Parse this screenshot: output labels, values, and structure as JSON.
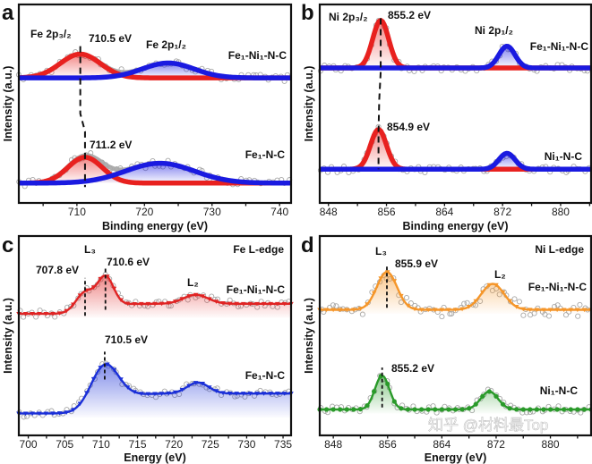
{
  "watermark": "知乎 @材料最Top",
  "chart_data": [
    {
      "panel": "a",
      "type": "line",
      "xlabel": "Binding energy (eV)",
      "ylabel": "Intensity (a.u.)",
      "xlim": [
        701.4,
        741.7
      ],
      "ylim": [
        0,
        1
      ],
      "xticks": [
        710,
        720,
        730,
        740
      ],
      "annotations": [
        "Fe 2p₃/₂",
        "710.5 eV",
        "Fe 2p₁/₂",
        "Fe₁-Ni₁-N-C",
        "711.2 eV",
        "Fe₁-N-C"
      ],
      "dashed_connector": [
        [
          710.5,
          0.79
        ],
        [
          710.5,
          0.45
        ],
        [
          711.2,
          0.36
        ],
        [
          711.2,
          0.08
        ]
      ],
      "spectra": [
        {
          "name": "Fe₁-Ni₁-N-C",
          "baseline": 0.63,
          "components": [
            {
              "label": "Fe 2p₃/₂",
              "center": 710.5,
              "fwhm": 7,
              "amp": 0.12,
              "color": "#e8211f"
            },
            {
              "label": "Fe 2p₁/₂",
              "center": 723.5,
              "fwhm": 9,
              "amp": 0.075,
              "color": "#1a1ae0"
            }
          ]
        },
        {
          "name": "Fe₁-N-C",
          "baseline": 0.1,
          "components": [
            {
              "label": "Fe 2p₃/₂",
              "center": 711.2,
              "fwhm": 6,
              "amp": 0.13,
              "color": "#e8211f"
            },
            {
              "label": "Fe 2p₁/₂",
              "center": 722.3,
              "fwhm": 12,
              "amp": 0.1,
              "color": "#1a1ae0"
            }
          ]
        }
      ]
    },
    {
      "panel": "b",
      "type": "line",
      "xlabel": "Binding energy (eV)",
      "ylabel": "Intensity (a.u.)",
      "xlim": [
        846.8,
        884.2
      ],
      "ylim": [
        0,
        1
      ],
      "xticks": [
        848,
        856,
        864,
        872,
        880
      ],
      "annotations": [
        "Ni 2p₃/₂",
        "855.2 eV",
        "Ni 2p₁/₂",
        "Fe₁-Ni₁-N-C",
        "854.9 eV",
        "Ni₁-N-C"
      ],
      "dashed_connector": [
        [
          855.2,
          0.93
        ],
        [
          855.2,
          0.66
        ],
        [
          855.0,
          0.52
        ],
        [
          854.9,
          0.36
        ],
        [
          854.9,
          0.17
        ]
      ],
      "spectra": [
        {
          "name": "Fe₁-Ni₁-N-C",
          "baseline": 0.68,
          "components": [
            {
              "label": "Ni 2p₃/₂",
              "center": 855.2,
              "fwhm": 2.6,
              "amp": 0.24,
              "color": "#e8211f"
            },
            {
              "label": "Ni 2p₁/₂",
              "center": 872.6,
              "fwhm": 2.6,
              "amp": 0.11,
              "color": "#1a1ae0"
            }
          ]
        },
        {
          "name": "Ni₁-N-C",
          "baseline": 0.17,
          "components": [
            {
              "label": "Ni 2p₃/₂",
              "center": 854.9,
              "fwhm": 2.6,
              "amp": 0.2,
              "color": "#e8211f"
            },
            {
              "label": "Ni 2p₁/₂",
              "center": 872.6,
              "fwhm": 2.6,
              "amp": 0.08,
              "color": "#1a1ae0"
            }
          ]
        }
      ]
    },
    {
      "panel": "c",
      "type": "line",
      "edge": "Fe L-edge",
      "xlabel": "Energy (eV)",
      "ylabel": "Intensity (a.u.)",
      "xlim": [
        698.7,
        736.1
      ],
      "ylim": [
        0,
        1
      ],
      "xticks": [
        700,
        705,
        710,
        715,
        720,
        725,
        730,
        735
      ],
      "annotations": [
        "L₃",
        "707.8 eV",
        "710.6 eV",
        "L₂",
        "Fe₁-Ni₁-N-C",
        "710.5 eV",
        "Fe₁-N-C"
      ],
      "dashed_lines": [
        [
          707.8,
          0.6,
          0.79
        ],
        [
          710.6,
          0.63,
          0.85
        ],
        [
          710.5,
          0.28,
          0.42
        ]
      ],
      "spectra": [
        {
          "name": "Fe₁-Ni₁-N-C",
          "color": "#e02424",
          "marker": "triangle-down",
          "baseline": 0.61,
          "step": 0.05,
          "peaks": [
            {
              "center": 707.8,
              "fwhm": 3,
              "amp": 0.1
            },
            {
              "center": 710.6,
              "fwhm": 2.6,
              "amp": 0.15
            },
            {
              "center": 723.0,
              "fwhm": 4,
              "amp": 0.045
            }
          ]
        },
        {
          "name": "Fe₁-N-C",
          "color": "#1a2fd8",
          "marker": "triangle-down",
          "baseline": 0.11,
          "step": 0.1,
          "peaks": [
            {
              "center": 710.5,
              "fwhm": 4.5,
              "amp": 0.23
            },
            {
              "center": 723.3,
              "fwhm": 3.5,
              "amp": 0.055
            }
          ]
        }
      ]
    },
    {
      "panel": "d",
      "type": "line",
      "edge": "Ni L-edge",
      "xlabel": "Energy (eV)",
      "ylabel": "Intensity (a.u.)",
      "xlim": [
        846.0,
        886.0
      ],
      "ylim": [
        0,
        1
      ],
      "xticks": [
        848,
        856,
        864,
        872,
        880
      ],
      "annotations": [
        "L₃",
        "855.9 eV",
        "L₂",
        "Fe₁-Ni₁-N-C",
        "855.2 eV",
        "Ni₁-N-C"
      ],
      "dashed_lines": [
        [
          855.9,
          0.64,
          0.85
        ],
        [
          855.2,
          0.14,
          0.34
        ]
      ],
      "spectra": [
        {
          "name": "Fe₁-Ni₁-N-C",
          "color": "#f5962a",
          "marker": "triangle-down",
          "baseline": 0.63,
          "step": 0,
          "peaks": [
            {
              "center": 855.9,
              "fwhm": 3.5,
              "amp": 0.19
            },
            {
              "center": 871.5,
              "fwhm": 4,
              "amp": 0.13
            }
          ]
        },
        {
          "name": "Ni₁-N-C",
          "color": "#2a9a2a",
          "marker": "circle",
          "baseline": 0.13,
          "step": 0,
          "peaks": [
            {
              "center": 855.2,
              "fwhm": 2.5,
              "amp": 0.17
            },
            {
              "center": 871.0,
              "fwhm": 3,
              "amp": 0.09
            }
          ]
        }
      ]
    }
  ]
}
